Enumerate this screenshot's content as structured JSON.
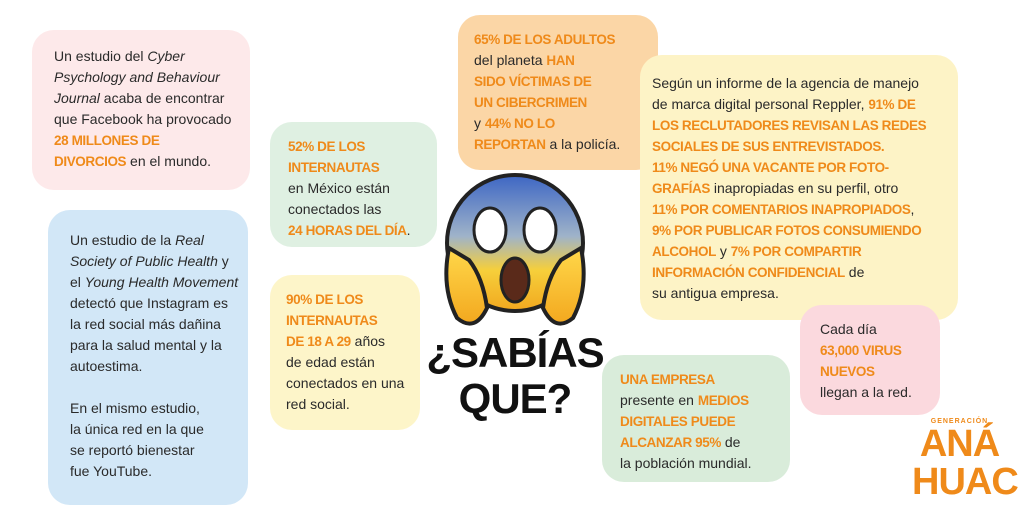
{
  "boxes": [
    {
      "paragraphs": [
        [
          [
            {
              "t": "Un estudio del ",
              "s": "n"
            },
            {
              "t": "Cyber",
              "s": "i"
            }
          ],
          [
            {
              "t": "Psychology and Behaviour",
              "s": "i"
            }
          ],
          [
            {
              "t": "Journal",
              "s": "i"
            },
            {
              "t": " acaba de encontrar",
              "s": "n"
            }
          ],
          [
            {
              "t": "que Facebook ha provocado",
              "s": "n"
            }
          ],
          [
            {
              "t": "28 MILLONES DE",
              "s": "b"
            }
          ],
          [
            {
              "t": "DIVORCIOS",
              "s": "b"
            },
            {
              "t": " en el mundo.",
              "s": "n"
            }
          ]
        ]
      ]
    },
    {
      "paragraphs": [
        [
          [
            {
              "t": "Un estudio de la ",
              "s": "n"
            },
            {
              "t": "Real",
              "s": "i"
            }
          ],
          [
            {
              "t": "Society of Public Health",
              "s": "i"
            },
            {
              "t": " y",
              "s": "n"
            }
          ],
          [
            {
              "t": "el ",
              "s": "n"
            },
            {
              "t": "Young Health Movement",
              "s": "i"
            }
          ],
          [
            {
              "t": "detectó que Instagram es",
              "s": "n"
            }
          ],
          [
            {
              "t": "la red social más dañina",
              "s": "n"
            }
          ],
          [
            {
              "t": "para la salud mental y la",
              "s": "n"
            }
          ],
          [
            {
              "t": "autoestima.",
              "s": "n"
            }
          ]
        ],
        [
          [
            {
              "t": "En el mismo estudio,",
              "s": "n"
            }
          ],
          [
            {
              "t": "la única red en la que",
              "s": "n"
            }
          ],
          [
            {
              "t": "se reportó bienestar",
              "s": "n"
            }
          ],
          [
            {
              "t": "fue YouTube.",
              "s": "n"
            }
          ]
        ]
      ]
    },
    {
      "paragraphs": [
        [
          [
            {
              "t": "52% DE LOS",
              "s": "b"
            }
          ],
          [
            {
              "t": "INTERNAUTAS",
              "s": "b"
            }
          ],
          [
            {
              "t": "en México están",
              "s": "n"
            }
          ],
          [
            {
              "t": "conectados las",
              "s": "n"
            }
          ],
          [
            {
              "t": "24 HORAS DEL DÍA",
              "s": "b"
            },
            {
              "t": ".",
              "s": "n"
            }
          ]
        ]
      ]
    },
    {
      "paragraphs": [
        [
          [
            {
              "t": "90% DE LOS",
              "s": "b"
            }
          ],
          [
            {
              "t": "INTERNAUTAS",
              "s": "b"
            }
          ],
          [
            {
              "t": "DE 18 A 29",
              "s": "b"
            },
            {
              "t": " años",
              "s": "n"
            }
          ],
          [
            {
              "t": "de edad están",
              "s": "n"
            }
          ],
          [
            {
              "t": "conectados en una",
              "s": "n"
            }
          ],
          [
            {
              "t": "red social.",
              "s": "n"
            }
          ]
        ]
      ]
    },
    {
      "paragraphs": [
        [
          [
            {
              "t": "65% DE LOS ADULTOS",
              "s": "b"
            }
          ],
          [
            {
              "t": "del planeta ",
              "s": "n"
            },
            {
              "t": "HAN",
              "s": "b"
            }
          ],
          [
            {
              "t": "SIDO VÍCTIMAS DE",
              "s": "b"
            }
          ],
          [
            {
              "t": "UN CIBERCRIMEN",
              "s": "b"
            }
          ],
          [
            {
              "t": "y ",
              "s": "n"
            },
            {
              "t": "44% NO LO",
              "s": "b"
            }
          ],
          [
            {
              "t": "REPORTAN",
              "s": "b"
            },
            {
              "t": " a la policía.",
              "s": "n"
            }
          ]
        ]
      ]
    },
    {
      "paragraphs": [
        [
          [
            {
              "t": "Según un informe de la agencia de manejo",
              "s": "n"
            }
          ],
          [
            {
              "t": "de marca digital personal Reppler, ",
              "s": "n"
            },
            {
              "t": "91% DE",
              "s": "b"
            }
          ],
          [
            {
              "t": "LOS RECLUTADORES REVISAN LAS REDES",
              "s": "b"
            }
          ],
          [
            {
              "t": "SOCIALES DE SUS ENTREVISTADOS.",
              "s": "b"
            }
          ],
          [
            {
              "t": "11% NEGÓ UNA VACANTE POR FOTO-",
              "s": "b"
            }
          ],
          [
            {
              "t": "GRAFÍAS",
              "s": "b"
            },
            {
              "t": " inapropiadas en su perfil, otro",
              "s": "n"
            }
          ],
          [
            {
              "t": "11% POR COMENTARIOS INAPROPIADOS",
              "s": "b"
            },
            {
              "t": ",",
              "s": "n"
            }
          ],
          [
            {
              "t": "9% POR PUBLICAR FOTOS CONSUMIENDO",
              "s": "b"
            }
          ],
          [
            {
              "t": "ALCOHOL",
              "s": "b"
            },
            {
              "t": " y ",
              "s": "n"
            },
            {
              "t": "7% POR COMPARTIR",
              "s": "b"
            }
          ],
          [
            {
              "t": "INFORMACIÓN CONFIDENCIAL",
              "s": "b"
            },
            {
              "t": " de",
              "s": "n"
            }
          ],
          [
            {
              "t": "su antigua empresa.",
              "s": "n"
            }
          ]
        ]
      ]
    },
    {
      "paragraphs": [
        [
          [
            {
              "t": "Cada día",
              "s": "n"
            }
          ],
          [
            {
              "t": "63,000 VIRUS",
              "s": "b"
            }
          ],
          [
            {
              "t": "NUEVOS",
              "s": "b"
            }
          ],
          [
            {
              "t": "llegan a la red.",
              "s": "n"
            }
          ]
        ]
      ]
    },
    {
      "paragraphs": [
        [
          [
            {
              "t": "UNA EMPRESA",
              "s": "b"
            }
          ],
          [
            {
              "t": "presente en ",
              "s": "n"
            },
            {
              "t": "MEDIOS",
              "s": "b"
            }
          ],
          [
            {
              "t": "DIGITALES PUEDE",
              "s": "b"
            }
          ],
          [
            {
              "t": "ALCANZAR 95%",
              "s": "b"
            },
            {
              "t": " de",
              "s": "n"
            }
          ],
          [
            {
              "t": "la población mundial.",
              "s": "n"
            }
          ]
        ]
      ]
    }
  ],
  "title": [
    "¿SABÍAS",
    "QUE?"
  ],
  "logo": {
    "caption": "GENERACIÓN",
    "lines": [
      "ANÁ",
      "HUAC"
    ]
  }
}
